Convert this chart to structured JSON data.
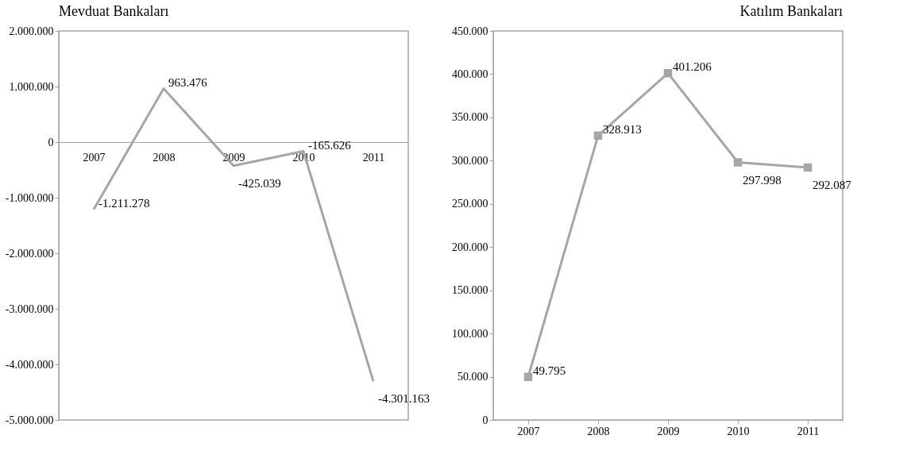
{
  "chart_data": [
    {
      "type": "line",
      "title": "Mevduat Bankaları",
      "categories": [
        "2007",
        "2008",
        "2009",
        "2010",
        "2011"
      ],
      "marker": "none",
      "ylim": [
        -5000000,
        2000000
      ],
      "yticks": [
        {
          "value": 2000000,
          "label": "2.000.000"
        },
        {
          "value": 1000000,
          "label": "1.000.000"
        },
        0,
        {
          "value": -1000000,
          "label": "-1.000.000"
        },
        {
          "value": -2000000,
          "label": "-2.000.000"
        },
        {
          "value": -3000000,
          "label": "-3.000.000"
        },
        {
          "value": -4000000,
          "label": "-4.000.000"
        },
        {
          "value": -5000000,
          "label": "-5.000.000"
        }
      ],
      "series": [
        {
          "color": "#a6a6a6",
          "values": [
            -1211278,
            963476,
            -425039,
            -165626,
            -4301163
          ],
          "value_labels": [
            "-1.211.278",
            "963.476",
            "-425.039",
            "-165.626",
            "-4.301.163"
          ]
        }
      ]
    },
    {
      "type": "line",
      "title": "Katılım Bankaları",
      "categories": [
        "2007",
        "2008",
        "2009",
        "2010",
        "2011"
      ],
      "marker": "square",
      "ylim": [
        0,
        450000
      ],
      "yticks": [
        {
          "value": 450000,
          "label": "450.000"
        },
        {
          "value": 400000,
          "label": "400.000"
        },
        {
          "value": 350000,
          "label": "350.000"
        },
        {
          "value": 300000,
          "label": "300.000"
        },
        {
          "value": 250000,
          "label": "250.000"
        },
        {
          "value": 200000,
          "label": "200.000"
        },
        {
          "value": 150000,
          "label": "150.000"
        },
        {
          "value": 100000,
          "label": "100.000"
        },
        {
          "value": 50000,
          "label": "50.000"
        },
        0
      ],
      "series": [
        {
          "color": "#a6a6a6",
          "values": [
            49795,
            328913,
            401206,
            297998,
            292087
          ],
          "value_labels": [
            "49.795",
            "328.913",
            "401.206",
            "297.998",
            "292.087"
          ]
        }
      ]
    }
  ]
}
